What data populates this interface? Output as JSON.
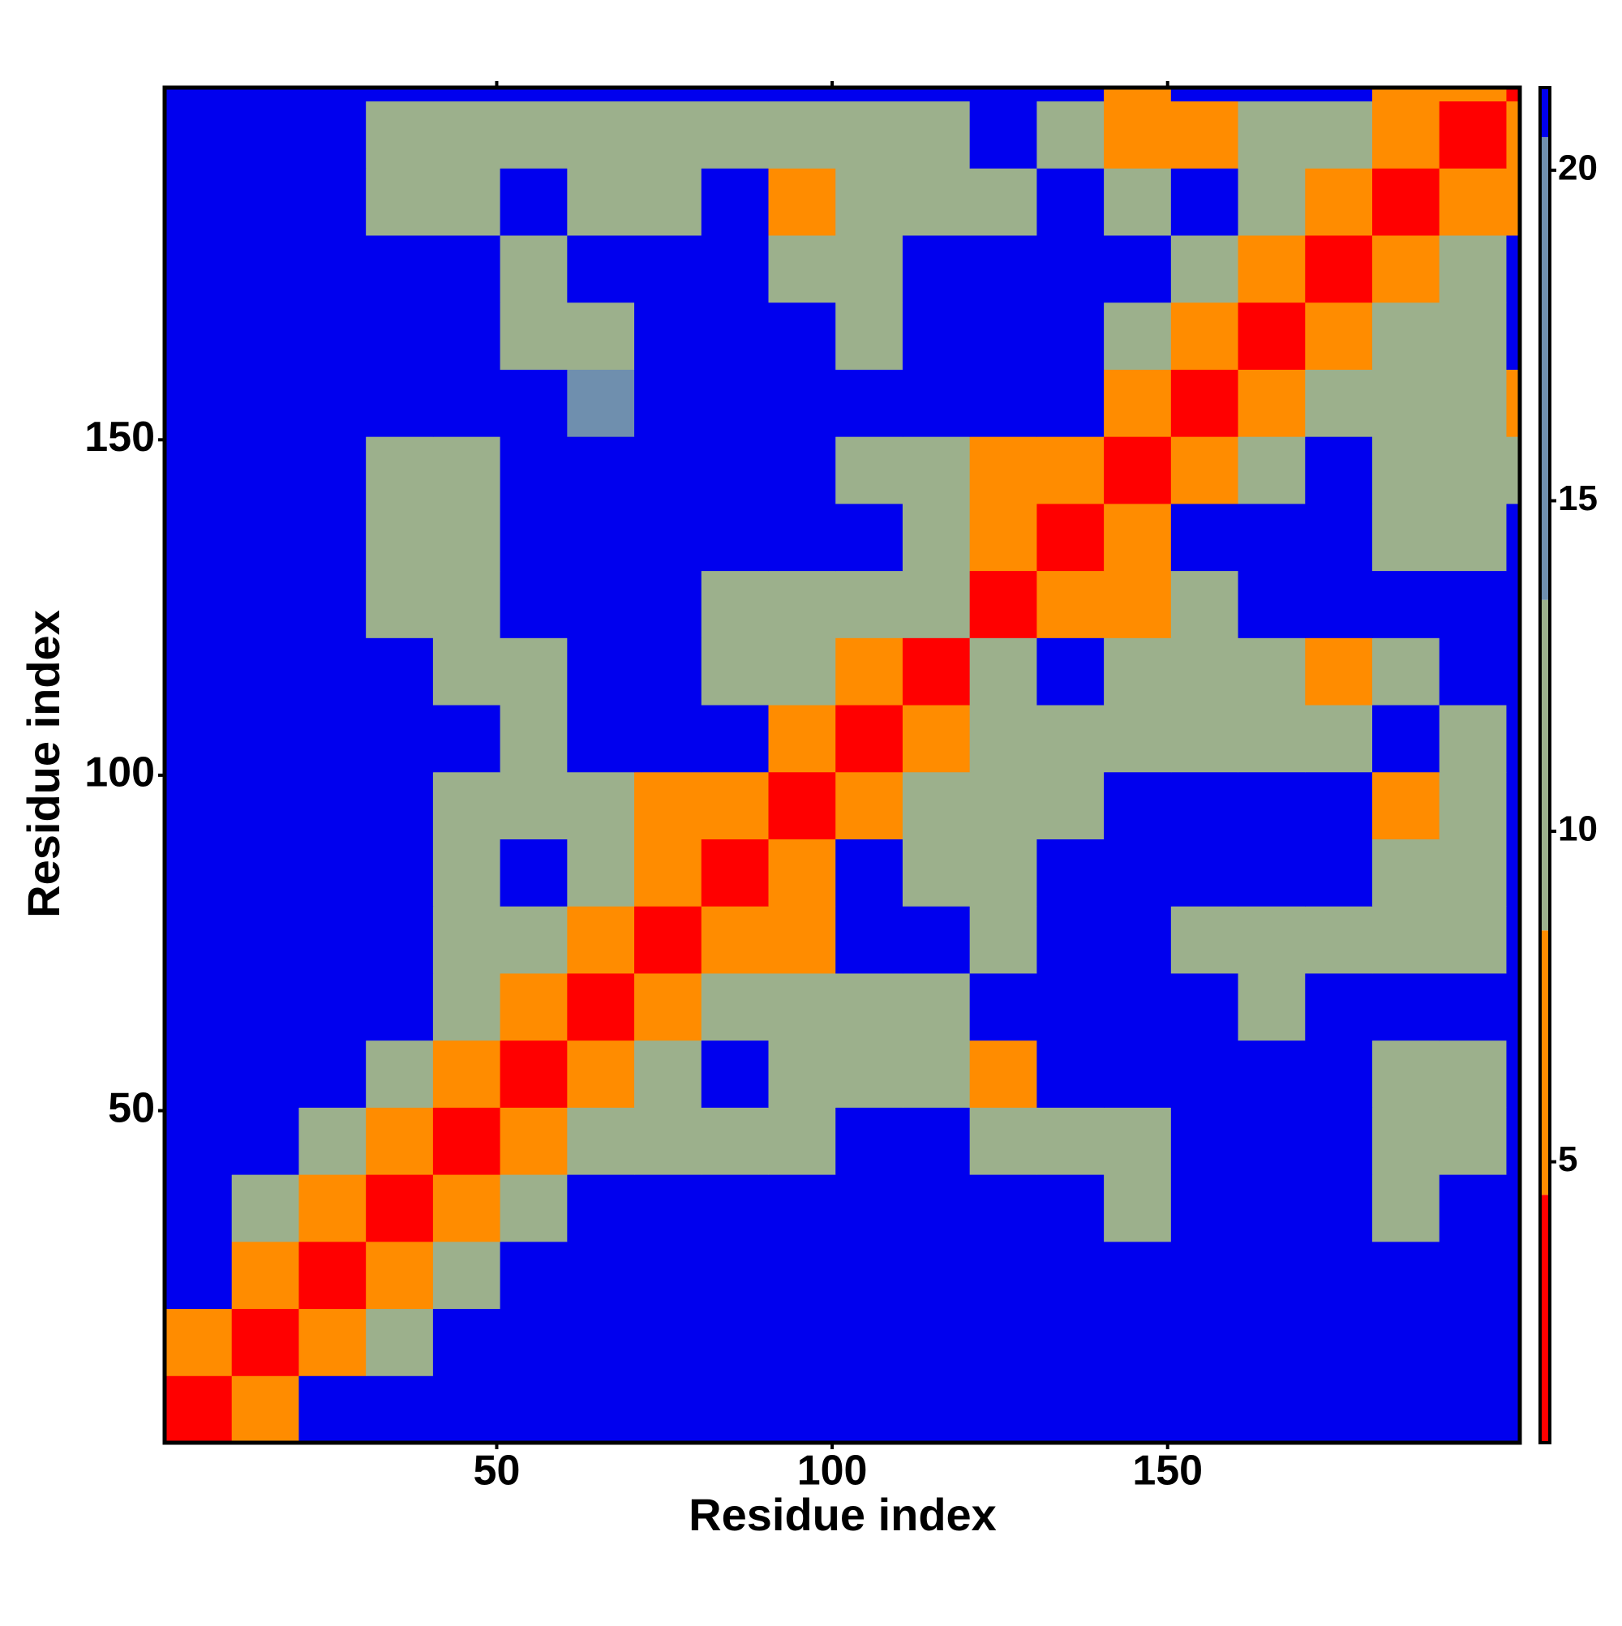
{
  "chart_data": {
    "type": "heatmap",
    "xlabel": "Residue index",
    "ylabel": "Residue index",
    "xlim": [
      0.5,
      202.5
    ],
    "ylim": [
      0.5,
      202.5
    ],
    "xticks": [
      50,
      100,
      150
    ],
    "yticks": [
      50,
      100,
      150
    ],
    "xbins": [
      0.5,
      10.5,
      20.5,
      30.5,
      40.5,
      50.5,
      60.5,
      70.5,
      80.5,
      90.5,
      100.5,
      110.5,
      120.5,
      130.5,
      140.5,
      150.5,
      160.5,
      170.5,
      180.5,
      190.5,
      200.5,
      202.5
    ],
    "ybins": [
      0.5,
      10.5,
      20.5,
      30.5,
      40.5,
      50.5,
      60.5,
      70.5,
      80.5,
      90.5,
      100.5,
      110.5,
      120.5,
      130.5,
      140.5,
      150.5,
      160.5,
      170.5,
      180.5,
      190.5,
      200.5,
      202.5
    ],
    "z": [
      [
        3,
        8,
        21,
        21,
        21,
        21,
        21,
        21,
        21,
        21,
        21,
        21,
        21,
        21,
        21,
        21,
        21,
        21,
        21,
        21,
        21
      ],
      [
        8,
        3,
        7,
        13,
        21,
        21,
        21,
        21,
        21,
        21,
        21,
        21,
        21,
        21,
        21,
        21,
        21,
        21,
        21,
        21,
        21
      ],
      [
        21,
        7,
        3,
        7,
        13,
        21,
        21,
        21,
        21,
        21,
        21,
        21,
        21,
        21,
        21,
        21,
        21,
        21,
        21,
        21,
        21
      ],
      [
        21,
        13,
        7,
        3,
        7,
        13,
        21,
        21,
        21,
        21,
        21,
        21,
        21,
        21,
        13,
        21,
        21,
        21,
        12,
        21,
        21
      ],
      [
        21,
        21,
        13,
        7,
        3,
        7,
        13,
        12,
        12,
        12,
        21,
        21,
        12,
        13,
        13,
        21,
        21,
        21,
        12,
        12,
        21
      ],
      [
        21,
        21,
        21,
        13,
        7,
        3,
        7,
        12,
        21,
        12,
        12,
        12,
        8,
        21,
        21,
        21,
        21,
        21,
        12,
        12,
        21
      ],
      [
        21,
        21,
        21,
        21,
        13,
        7,
        3,
        8,
        12,
        12,
        11,
        12,
        21,
        21,
        21,
        21,
        12,
        21,
        21,
        21,
        21
      ],
      [
        21,
        21,
        21,
        21,
        12,
        12,
        8,
        3,
        8,
        7,
        21,
        21,
        12,
        21,
        21,
        12,
        12,
        12,
        12,
        12,
        21
      ],
      [
        21,
        21,
        21,
        21,
        12,
        21,
        12,
        8,
        3,
        8,
        21,
        12,
        13,
        21,
        21,
        21,
        21,
        21,
        12,
        12,
        21
      ],
      [
        21,
        21,
        21,
        21,
        12,
        11,
        11,
        7,
        8,
        3,
        8,
        13,
        13,
        13,
        21,
        21,
        21,
        21,
        7,
        12,
        21
      ],
      [
        21,
        21,
        21,
        21,
        21,
        12,
        21,
        21,
        21,
        8,
        3,
        8,
        13,
        13,
        12,
        12,
        12,
        12,
        21,
        12,
        21
      ],
      [
        21,
        21,
        21,
        21,
        12,
        12,
        21,
        21,
        13,
        13,
        8,
        3,
        12,
        21,
        12,
        12,
        12,
        8,
        12,
        21,
        21
      ],
      [
        21,
        21,
        21,
        12,
        12,
        21,
        21,
        21,
        13,
        13,
        13,
        12,
        3,
        8,
        7,
        12,
        21,
        21,
        21,
        21,
        21
      ],
      [
        21,
        21,
        21,
        13,
        13,
        21,
        21,
        21,
        21,
        21,
        21,
        12,
        8,
        3,
        8,
        21,
        21,
        21,
        12,
        12,
        21
      ],
      [
        21,
        21,
        21,
        13,
        13,
        21,
        21,
        21,
        21,
        21,
        12,
        12,
        8,
        7,
        3,
        8,
        12,
        21,
        12,
        12,
        12
      ],
      [
        21,
        21,
        21,
        21,
        21,
        21,
        14,
        21,
        21,
        21,
        21,
        21,
        21,
        21,
        8,
        3,
        8,
        12,
        12,
        12,
        8
      ],
      [
        21,
        21,
        21,
        21,
        21,
        12,
        13,
        21,
        21,
        21,
        12,
        21,
        21,
        21,
        12,
        8,
        3,
        8,
        12,
        13,
        21
      ],
      [
        21,
        21,
        21,
        21,
        21,
        12,
        21,
        21,
        21,
        12,
        12,
        21,
        21,
        21,
        21,
        12,
        8,
        3,
        8,
        12,
        21
      ],
      [
        21,
        21,
        21,
        12,
        12,
        21,
        12,
        13,
        21,
        8,
        12,
        13,
        13,
        21,
        12,
        21,
        12,
        8,
        3,
        7,
        8
      ],
      [
        21,
        21,
        21,
        12,
        12,
        12,
        12,
        12,
        13,
        12,
        13,
        12,
        21,
        12,
        8,
        7,
        12,
        12,
        7,
        3,
        8
      ],
      [
        21,
        21,
        21,
        21,
        21,
        21,
        21,
        21,
        21,
        21,
        21,
        21,
        21,
        21,
        8,
        21,
        21,
        21,
        8,
        8,
        3
      ]
    ],
    "colorscale": [
      {
        "max": 4.5,
        "color": "#ff0000"
      },
      {
        "max": 8.5,
        "color": "#ff8c00"
      },
      {
        "max": 13.5,
        "color": "#9cb08c"
      },
      {
        "max": 20.5,
        "color": "#6f8fae"
      },
      {
        "max": 21.25,
        "color": "#0000ee"
      }
    ],
    "clim": [
      0.75,
      21.25
    ],
    "colorbar_ticks": [
      5,
      10,
      15,
      20
    ]
  }
}
